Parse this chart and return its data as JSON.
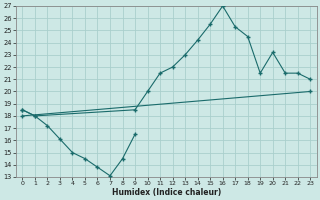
{
  "xlabel": "Humidex (Indice chaleur)",
  "background_color": "#cde8e5",
  "grid_color": "#aacfcc",
  "line_color": "#1a6b6b",
  "xlim": [
    -0.5,
    23.5
  ],
  "ylim": [
    13,
    27
  ],
  "xticks": [
    0,
    1,
    2,
    3,
    4,
    5,
    6,
    7,
    8,
    9,
    10,
    11,
    12,
    13,
    14,
    15,
    16,
    17,
    18,
    19,
    20,
    21,
    22,
    23
  ],
  "yticks": [
    13,
    14,
    15,
    16,
    17,
    18,
    19,
    20,
    21,
    22,
    23,
    24,
    25,
    26,
    27
  ],
  "line1_zigzag": {
    "x": [
      0,
      1,
      2,
      3,
      4,
      5,
      6,
      7,
      8,
      9
    ],
    "y": [
      18.5,
      18.0,
      17.2,
      16.1,
      15.0,
      14.5,
      13.8,
      13.1,
      14.5,
      16.5
    ]
  },
  "line2_upper": {
    "x": [
      0,
      1,
      9,
      10,
      11,
      12,
      13,
      14,
      15,
      16,
      17,
      18,
      19,
      20,
      21,
      22,
      23
    ],
    "y": [
      18.5,
      18.0,
      18.5,
      20.0,
      21.5,
      22.0,
      23.0,
      24.2,
      25.5,
      27.0,
      25.3,
      24.5,
      21.5,
      23.2,
      21.5,
      21.5,
      21.0
    ]
  },
  "line3_straight": {
    "x": [
      0,
      23
    ],
    "y": [
      18.0,
      20.0
    ]
  }
}
